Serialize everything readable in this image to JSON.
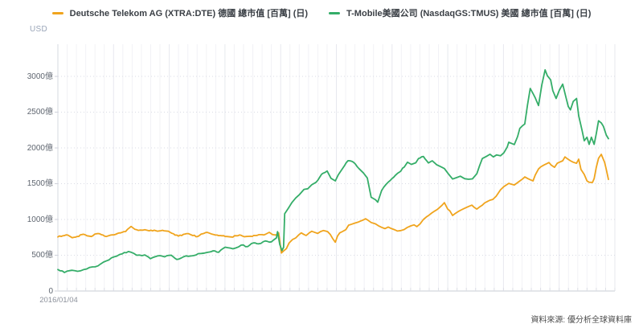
{
  "footer": {
    "source_note": "資料來源: 優分析全球資料庫"
  },
  "chart_data": {
    "type": "line",
    "title": "",
    "unit": "USD",
    "x_first_label": "2016/01/04",
    "x_range_note": "2016/01/04 onward, daily",
    "grid": true,
    "legend_position": "top-center",
    "ylim": [
      0,
      3450
    ],
    "y_ticks": [
      {
        "v": 0,
        "label": "0"
      },
      {
        "v": 500,
        "label": "500億"
      },
      {
        "v": 1000,
        "label": "1000億"
      },
      {
        "v": 1500,
        "label": "1500億"
      },
      {
        "v": 2000,
        "label": "2000億"
      },
      {
        "v": 2500,
        "label": "2500億"
      },
      {
        "v": 3000,
        "label": "3000億"
      }
    ],
    "value_unit": "億 USD",
    "jitter": 9,
    "series": [
      {
        "name": "Deutsche Telekom AG (XTRA:DTE) 德國 總市值 [百萬] (日)",
        "color": "#f0a41d",
        "points": [
          [
            0,
            755
          ],
          [
            0.009,
            772
          ],
          [
            0.018,
            782
          ],
          [
            0.026,
            745
          ],
          [
            0.035,
            762
          ],
          [
            0.044,
            790
          ],
          [
            0.053,
            772
          ],
          [
            0.061,
            762
          ],
          [
            0.07,
            800
          ],
          [
            0.079,
            788
          ],
          [
            0.088,
            762
          ],
          [
            0.096,
            782
          ],
          [
            0.105,
            792
          ],
          [
            0.114,
            812
          ],
          [
            0.123,
            832
          ],
          [
            0.133,
            902
          ],
          [
            0.14,
            862
          ],
          [
            0.149,
            852
          ],
          [
            0.158,
            858
          ],
          [
            0.166,
            842
          ],
          [
            0.175,
            850
          ],
          [
            0.184,
            840
          ],
          [
            0.193,
            842
          ],
          [
            0.201,
            835
          ],
          [
            0.21,
            800
          ],
          [
            0.219,
            768
          ],
          [
            0.228,
            792
          ],
          [
            0.237,
            802
          ],
          [
            0.245,
            775
          ],
          [
            0.254,
            762
          ],
          [
            0.263,
            800
          ],
          [
            0.272,
            818
          ],
          [
            0.28,
            795
          ],
          [
            0.289,
            782
          ],
          [
            0.298,
            772
          ],
          [
            0.307,
            762
          ],
          [
            0.315,
            755
          ],
          [
            0.324,
            772
          ],
          [
            0.333,
            778
          ],
          [
            0.342,
            762
          ],
          [
            0.35,
            765
          ],
          [
            0.359,
            775
          ],
          [
            0.368,
            788
          ],
          [
            0.377,
            792
          ],
          [
            0.384,
            820
          ],
          [
            0.39,
            788
          ],
          [
            0.396,
            782
          ],
          [
            0.401,
            812
          ],
          [
            0.406,
            532
          ],
          [
            0.41,
            560
          ],
          [
            0.415,
            592
          ],
          [
            0.42,
            672
          ],
          [
            0.426,
            718
          ],
          [
            0.432,
            742
          ],
          [
            0.438,
            788
          ],
          [
            0.442,
            812
          ],
          [
            0.447,
            790
          ],
          [
            0.451,
            775
          ],
          [
            0.457,
            815
          ],
          [
            0.461,
            835
          ],
          [
            0.467,
            818
          ],
          [
            0.472,
            805
          ],
          [
            0.477,
            830
          ],
          [
            0.482,
            845
          ],
          [
            0.486,
            838
          ],
          [
            0.49,
            830
          ],
          [
            0.495,
            788
          ],
          [
            0.499,
            735
          ],
          [
            0.504,
            682
          ],
          [
            0.508,
            770
          ],
          [
            0.512,
            812
          ],
          [
            0.517,
            832
          ],
          [
            0.523,
            858
          ],
          [
            0.528,
            920
          ],
          [
            0.534,
            935
          ],
          [
            0.539,
            948
          ],
          [
            0.545,
            962
          ],
          [
            0.549,
            975
          ],
          [
            0.555,
            995
          ],
          [
            0.559,
            1010
          ],
          [
            0.564,
            985
          ],
          [
            0.569,
            958
          ],
          [
            0.577,
            938
          ],
          [
            0.582,
            912
          ],
          [
            0.588,
            890
          ],
          [
            0.594,
            872
          ],
          [
            0.6,
            895
          ],
          [
            0.606,
            872
          ],
          [
            0.612,
            855
          ],
          [
            0.617,
            838
          ],
          [
            0.623,
            845
          ],
          [
            0.629,
            860
          ],
          [
            0.635,
            890
          ],
          [
            0.641,
            910
          ],
          [
            0.647,
            925
          ],
          [
            0.652,
            900
          ],
          [
            0.658,
            940
          ],
          [
            0.664,
            1000
          ],
          [
            0.67,
            1040
          ],
          [
            0.674,
            1060
          ],
          [
            0.679,
            1090
          ],
          [
            0.685,
            1120
          ],
          [
            0.689,
            1140
          ],
          [
            0.693,
            1165
          ],
          [
            0.698,
            1200
          ],
          [
            0.702,
            1235
          ],
          [
            0.708,
            1145
          ],
          [
            0.712,
            1120
          ],
          [
            0.717,
            1055
          ],
          [
            0.721,
            1080
          ],
          [
            0.727,
            1110
          ],
          [
            0.733,
            1135
          ],
          [
            0.737,
            1150
          ],
          [
            0.742,
            1168
          ],
          [
            0.747,
            1185
          ],
          [
            0.752,
            1200
          ],
          [
            0.756,
            1170
          ],
          [
            0.761,
            1145
          ],
          [
            0.766,
            1175
          ],
          [
            0.771,
            1200
          ],
          [
            0.775,
            1230
          ],
          [
            0.781,
            1255
          ],
          [
            0.785,
            1270
          ],
          [
            0.79,
            1280
          ],
          [
            0.796,
            1325
          ],
          [
            0.8,
            1370
          ],
          [
            0.804,
            1415
          ],
          [
            0.81,
            1460
          ],
          [
            0.815,
            1485
          ],
          [
            0.819,
            1505
          ],
          [
            0.823,
            1495
          ],
          [
            0.829,
            1482
          ],
          [
            0.834,
            1510
          ],
          [
            0.839,
            1538
          ],
          [
            0.844,
            1565
          ],
          [
            0.848,
            1595
          ],
          [
            0.854,
            1570
          ],
          [
            0.858,
            1555
          ],
          [
            0.863,
            1540
          ],
          [
            0.867,
            1620
          ],
          [
            0.873,
            1706
          ],
          [
            0.877,
            1735
          ],
          [
            0.883,
            1762
          ],
          [
            0.888,
            1780
          ],
          [
            0.892,
            1796
          ],
          [
            0.896,
            1760
          ],
          [
            0.902,
            1730
          ],
          [
            0.907,
            1786
          ],
          [
            0.911,
            1800
          ],
          [
            0.917,
            1820
          ],
          [
            0.921,
            1875
          ],
          [
            0.926,
            1845
          ],
          [
            0.931,
            1820
          ],
          [
            0.936,
            1800
          ],
          [
            0.942,
            1786
          ],
          [
            0.946,
            1843
          ],
          [
            0.95,
            1700
          ],
          [
            0.956,
            1630
          ],
          [
            0.961,
            1540
          ],
          [
            0.965,
            1520
          ],
          [
            0.971,
            1517
          ],
          [
            0.974,
            1570
          ],
          [
            0.978,
            1730
          ],
          [
            0.982,
            1855
          ],
          [
            0.987,
            1910
          ],
          [
            0.99,
            1855
          ],
          [
            0.993,
            1800
          ],
          [
            0.996,
            1700
          ],
          [
            1,
            1560
          ]
        ]
      },
      {
        "name": "T-Mobile美國公司 (NasdaqGS:TMUS) 美國 總市值 [百萬] (日)",
        "color": "#34ad68",
        "points": [
          [
            0,
            300
          ],
          [
            0.012,
            258
          ],
          [
            0.026,
            290
          ],
          [
            0.041,
            282
          ],
          [
            0.058,
            330
          ],
          [
            0.073,
            352
          ],
          [
            0.088,
            420
          ],
          [
            0.102,
            478
          ],
          [
            0.117,
            520
          ],
          [
            0.128,
            552
          ],
          [
            0.143,
            500
          ],
          [
            0.158,
            505
          ],
          [
            0.168,
            452
          ],
          [
            0.181,
            490
          ],
          [
            0.194,
            478
          ],
          [
            0.206,
            500
          ],
          [
            0.216,
            440
          ],
          [
            0.228,
            478
          ],
          [
            0.242,
            490
          ],
          [
            0.255,
            522
          ],
          [
            0.272,
            540
          ],
          [
            0.282,
            562
          ],
          [
            0.292,
            540
          ],
          [
            0.304,
            612
          ],
          [
            0.318,
            590
          ],
          [
            0.333,
            642
          ],
          [
            0.345,
            622
          ],
          [
            0.355,
            672
          ],
          [
            0.365,
            660
          ],
          [
            0.377,
            700
          ],
          [
            0.388,
            688
          ],
          [
            0.397,
            742
          ],
          [
            0.399,
            830
          ],
          [
            0.403,
            650
          ],
          [
            0.407,
            565
          ],
          [
            0.41,
            610
          ],
          [
            0.412,
            1080
          ],
          [
            0.418,
            1150
          ],
          [
            0.425,
            1235
          ],
          [
            0.432,
            1300
          ],
          [
            0.439,
            1350
          ],
          [
            0.447,
            1420
          ],
          [
            0.454,
            1430
          ],
          [
            0.461,
            1485
          ],
          [
            0.469,
            1520
          ],
          [
            0.479,
            1632
          ],
          [
            0.489,
            1678
          ],
          [
            0.496,
            1575
          ],
          [
            0.504,
            1540
          ],
          [
            0.509,
            1620
          ],
          [
            0.517,
            1710
          ],
          [
            0.527,
            1822
          ],
          [
            0.537,
            1800
          ],
          [
            0.547,
            1710
          ],
          [
            0.555,
            1650
          ],
          [
            0.562,
            1580
          ],
          [
            0.569,
            1310
          ],
          [
            0.577,
            1275
          ],
          [
            0.581,
            1242
          ],
          [
            0.588,
            1405
          ],
          [
            0.6,
            1522
          ],
          [
            0.61,
            1590
          ],
          [
            0.62,
            1660
          ],
          [
            0.629,
            1732
          ],
          [
            0.635,
            1800
          ],
          [
            0.642,
            1770
          ],
          [
            0.65,
            1792
          ],
          [
            0.655,
            1852
          ],
          [
            0.664,
            1880
          ],
          [
            0.673,
            1790
          ],
          [
            0.68,
            1820
          ],
          [
            0.688,
            1765
          ],
          [
            0.696,
            1735
          ],
          [
            0.702,
            1712
          ],
          [
            0.709,
            1640
          ],
          [
            0.717,
            1565
          ],
          [
            0.724,
            1585
          ],
          [
            0.731,
            1605
          ],
          [
            0.739,
            1570
          ],
          [
            0.746,
            1562
          ],
          [
            0.753,
            1568
          ],
          [
            0.761,
            1640
          ],
          [
            0.766,
            1752
          ],
          [
            0.771,
            1852
          ],
          [
            0.778,
            1880
          ],
          [
            0.785,
            1912
          ],
          [
            0.791,
            1875
          ],
          [
            0.797,
            1902
          ],
          [
            0.804,
            1890
          ],
          [
            0.81,
            1932
          ],
          [
            0.816,
            2010
          ],
          [
            0.819,
            2080
          ],
          [
            0.825,
            2060
          ],
          [
            0.829,
            2048
          ],
          [
            0.835,
            2160
          ],
          [
            0.839,
            2272
          ],
          [
            0.844,
            2310
          ],
          [
            0.848,
            2335
          ],
          [
            0.853,
            2600
          ],
          [
            0.858,
            2832
          ],
          [
            0.863,
            2760
          ],
          [
            0.867,
            2700
          ],
          [
            0.873,
            2592
          ],
          [
            0.879,
            2880
          ],
          [
            0.885,
            3092
          ],
          [
            0.889,
            3010
          ],
          [
            0.895,
            2952
          ],
          [
            0.899,
            2800
          ],
          [
            0.905,
            2692
          ],
          [
            0.911,
            2810
          ],
          [
            0.917,
            2892
          ],
          [
            0.923,
            2700
          ],
          [
            0.927,
            2580
          ],
          [
            0.931,
            2532
          ],
          [
            0.936,
            2650
          ],
          [
            0.942,
            2692
          ],
          [
            0.946,
            2450
          ],
          [
            0.952,
            2250
          ],
          [
            0.956,
            2100
          ],
          [
            0.961,
            2150
          ],
          [
            0.965,
            2050
          ],
          [
            0.969,
            2150
          ],
          [
            0.974,
            2050
          ],
          [
            0.978,
            2200
          ],
          [
            0.982,
            2380
          ],
          [
            0.987,
            2350
          ],
          [
            0.991,
            2300
          ],
          [
            0.996,
            2180
          ],
          [
            1,
            2130
          ]
        ]
      }
    ]
  }
}
